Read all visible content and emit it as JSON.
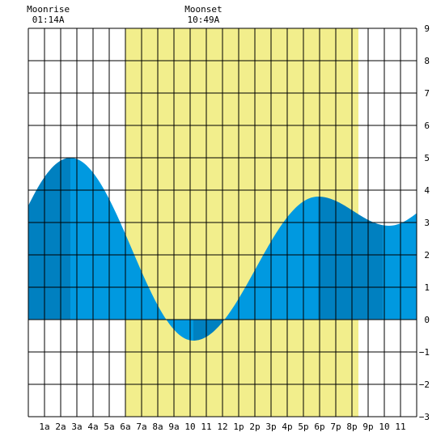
{
  "chart_data": {
    "type": "area",
    "title": "",
    "xlabel": "",
    "ylabel": "",
    "x_tick_labels": [
      "1a",
      "2a",
      "3a",
      "4a",
      "5a",
      "6a",
      "7a",
      "8a",
      "9a",
      "10",
      "11",
      "12",
      "1p",
      "2p",
      "3p",
      "4p",
      "5p",
      "6p",
      "7p",
      "8p",
      "9p",
      "10",
      "11"
    ],
    "x_range_hours": [
      0,
      24
    ],
    "ylim": [
      -3,
      9
    ],
    "y_tick_labels": [
      "9",
      "8",
      "7",
      "6",
      "5",
      "4",
      "3",
      "2",
      "1",
      "0",
      "−1",
      "−2",
      "−3"
    ],
    "grid": true,
    "daylight": {
      "start_hour": 6.0,
      "end_hour": 20.4,
      "color": "#f2ee8c"
    },
    "tide_extrema": [
      {
        "time_hour": 2.6,
        "height": 5.0,
        "kind": "high"
      },
      {
        "time_hour": 10.2,
        "height": -0.65,
        "kind": "low"
      },
      {
        "time_hour": 17.9,
        "height": 3.8,
        "kind": "high"
      },
      {
        "time_hour": 22.3,
        "height": 2.9,
        "kind": "low"
      }
    ],
    "tide_start_height": 4.1,
    "tide_end_height": 3.35,
    "shading_boundaries_hours": [
      2.6,
      10.2,
      12.0,
      17.9,
      21.9
    ],
    "colors": {
      "dark": "#0080c0",
      "light": "#0099e0",
      "grid": "#000000"
    },
    "annotations": [
      {
        "title": "Moonrise",
        "time": "01:14A",
        "time_hour": 1.23
      },
      {
        "title": "Moonset",
        "time": "10:49A",
        "time_hour": 10.82
      }
    ]
  }
}
